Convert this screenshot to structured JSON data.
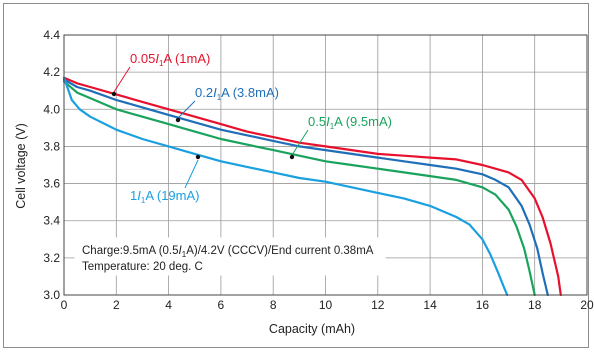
{
  "chart_data": {
    "type": "line",
    "xlabel": "Capacity (mAh)",
    "ylabel": "Cell voltage (V)",
    "xlim": [
      0,
      20
    ],
    "ylim": [
      3.0,
      4.4
    ],
    "x_ticks": [
      "0",
      "2",
      "4",
      "6",
      "8",
      "10",
      "12",
      "14",
      "16",
      "18",
      "20"
    ],
    "y_ticks": [
      "3.0",
      "3.2",
      "3.4",
      "3.6",
      "3.8",
      "4.0",
      "4.2",
      "4.4"
    ],
    "grid": true,
    "series": [
      {
        "name": "0.05I₁A (1mA)",
        "label_main": "0.05",
        "label_italic": "I",
        "label_sub": "1",
        "label_tail": "A (1mA)",
        "color": "#e8112d",
        "x": [
          0,
          0.5,
          1,
          2,
          3,
          4,
          5,
          6,
          7,
          8,
          9,
          10,
          11,
          12,
          13,
          14,
          15,
          16,
          16.5,
          17,
          17.5,
          18,
          18.3,
          18.6,
          18.9,
          19.0
        ],
        "y": [
          4.17,
          4.14,
          4.12,
          4.08,
          4.04,
          4.0,
          3.96,
          3.92,
          3.88,
          3.85,
          3.82,
          3.8,
          3.78,
          3.76,
          3.75,
          3.74,
          3.73,
          3.7,
          3.68,
          3.66,
          3.62,
          3.52,
          3.42,
          3.28,
          3.1,
          3.0
        ]
      },
      {
        "name": "0.2I₁A (3.8mA)",
        "label_main": "0.2",
        "label_italic": "I",
        "label_sub": "1",
        "label_tail": "A (3.8mA)",
        "color": "#1f6fb8",
        "x": [
          0,
          0.5,
          1,
          2,
          3,
          4,
          5,
          6,
          7,
          8,
          9,
          10,
          11,
          12,
          13,
          14,
          15,
          16,
          16.5,
          17,
          17.5,
          17.8,
          18.1,
          18.3,
          18.5
        ],
        "y": [
          4.16,
          4.12,
          4.1,
          4.05,
          4.01,
          3.97,
          3.93,
          3.89,
          3.86,
          3.83,
          3.8,
          3.78,
          3.76,
          3.74,
          3.72,
          3.7,
          3.68,
          3.65,
          3.62,
          3.58,
          3.48,
          3.38,
          3.25,
          3.12,
          3.0
        ]
      },
      {
        "name": "0.5I₁A (9.5mA)",
        "label_main": "0.5",
        "label_italic": "I",
        "label_sub": "1",
        "label_tail": "A (9.5mA)",
        "color": "#1aa35c",
        "x": [
          0,
          0.5,
          1,
          2,
          3,
          4,
          5,
          6,
          7,
          8,
          9,
          10,
          11,
          12,
          13,
          14,
          15,
          16,
          16.5,
          17,
          17.3,
          17.6,
          17.8,
          18.0
        ],
        "y": [
          4.15,
          4.09,
          4.06,
          4.0,
          3.96,
          3.92,
          3.88,
          3.84,
          3.81,
          3.78,
          3.75,
          3.72,
          3.7,
          3.68,
          3.66,
          3.64,
          3.62,
          3.58,
          3.54,
          3.46,
          3.37,
          3.25,
          3.13,
          3.0
        ]
      },
      {
        "name": "1I₁A (19mA)",
        "label_main": "1",
        "label_italic": "I",
        "label_sub": "1",
        "label_tail": "A (19mA)",
        "color": "#1aa0e0",
        "x": [
          0,
          0.3,
          0.6,
          1,
          2,
          3,
          4,
          5,
          6,
          7,
          8,
          9,
          10,
          11,
          12,
          13,
          14,
          15,
          15.5,
          16,
          16.3,
          16.6,
          16.8,
          16.95
        ],
        "y": [
          4.17,
          4.05,
          4.0,
          3.96,
          3.89,
          3.84,
          3.8,
          3.76,
          3.72,
          3.69,
          3.66,
          3.63,
          3.61,
          3.58,
          3.55,
          3.52,
          3.48,
          3.42,
          3.38,
          3.3,
          3.22,
          3.12,
          3.05,
          3.0
        ]
      }
    ],
    "annotation": {
      "line1_prefix": "Charge:9.5mA (0.5",
      "line1_italic": "I",
      "line1_sub": "1",
      "line1_suffix": "A)/4.2V (CCCV)/End current 0.38mA",
      "line2": "Temperature: 20 deg. C"
    }
  }
}
